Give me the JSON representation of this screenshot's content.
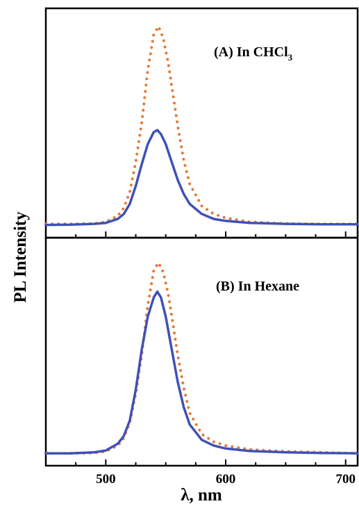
{
  "chart_data": {
    "type": "line",
    "ylabel": "PL Intensity",
    "xlabel": "λ, nm",
    "xlim": [
      450,
      710
    ],
    "x_major_ticks": [
      500,
      600,
      700
    ],
    "x_tick_labels": [
      "500",
      "600",
      "700"
    ],
    "x_minor_step": 25,
    "grid": false,
    "legend": "none",
    "panels": [
      {
        "label": "(A) In CHCl",
        "label_subscript": "3",
        "ylim": [
          0,
          1.05
        ],
        "series": [
          {
            "style": "dotted",
            "color": "#e07b3a",
            "x": [
              450,
              470,
              490,
              500,
              510,
              515,
              520,
              525,
              530,
              535,
              540,
              544,
              548,
              552,
              556,
              560,
              565,
              570,
              580,
              590,
              600,
              620,
              650,
              680,
              710
            ],
            "y": [
              0.01,
              0.01,
              0.012,
              0.02,
              0.05,
              0.09,
              0.17,
              0.32,
              0.52,
              0.78,
              0.96,
              1.0,
              0.94,
              0.82,
              0.66,
              0.5,
              0.33,
              0.21,
              0.1,
              0.06,
              0.04,
              0.02,
              0.012,
              0.01,
              0.01
            ]
          },
          {
            "style": "solid",
            "color": "#3f51b5",
            "x": [
              450,
              470,
              490,
              500,
              510,
              515,
              520,
              525,
              530,
              535,
              540,
              543,
              546,
              550,
              555,
              560,
              565,
              570,
              580,
              590,
              600,
              620,
              650,
              680,
              710
            ],
            "y": [
              0.005,
              0.006,
              0.01,
              0.015,
              0.035,
              0.06,
              0.11,
              0.2,
              0.31,
              0.41,
              0.47,
              0.48,
              0.46,
              0.41,
              0.32,
              0.23,
              0.16,
              0.11,
              0.06,
              0.035,
              0.025,
              0.015,
              0.01,
              0.008,
              0.008
            ]
          }
        ]
      },
      {
        "label": "(B)  In Hexane",
        "label_subscript": "",
        "ylim": [
          0,
          1.05
        ],
        "series": [
          {
            "style": "dotted",
            "color": "#e07b3a",
            "x": [
              450,
              470,
              490,
              500,
              510,
              515,
              520,
              525,
              530,
              535,
              540,
              544,
              548,
              552,
              556,
              560,
              565,
              570,
              580,
              590,
              600,
              620,
              650,
              680,
              710
            ],
            "y": [
              0.01,
              0.01,
              0.012,
              0.02,
              0.05,
              0.09,
              0.17,
              0.32,
              0.52,
              0.78,
              0.96,
              1.0,
              0.95,
              0.84,
              0.68,
              0.52,
              0.35,
              0.22,
              0.11,
              0.07,
              0.05,
              0.03,
              0.02,
              0.015,
              0.01
            ]
          },
          {
            "style": "solid",
            "color": "#3f51b5",
            "x": [
              450,
              470,
              490,
              500,
              510,
              515,
              520,
              525,
              530,
              535,
              540,
              543,
              546,
              550,
              555,
              560,
              565,
              570,
              580,
              590,
              600,
              620,
              650,
              680,
              710
            ],
            "y": [
              0.01,
              0.01,
              0.015,
              0.025,
              0.06,
              0.1,
              0.18,
              0.34,
              0.55,
              0.72,
              0.82,
              0.85,
              0.82,
              0.72,
              0.55,
              0.38,
              0.25,
              0.16,
              0.08,
              0.05,
              0.035,
              0.022,
              0.015,
              0.012,
              0.01
            ]
          }
        ]
      }
    ]
  }
}
